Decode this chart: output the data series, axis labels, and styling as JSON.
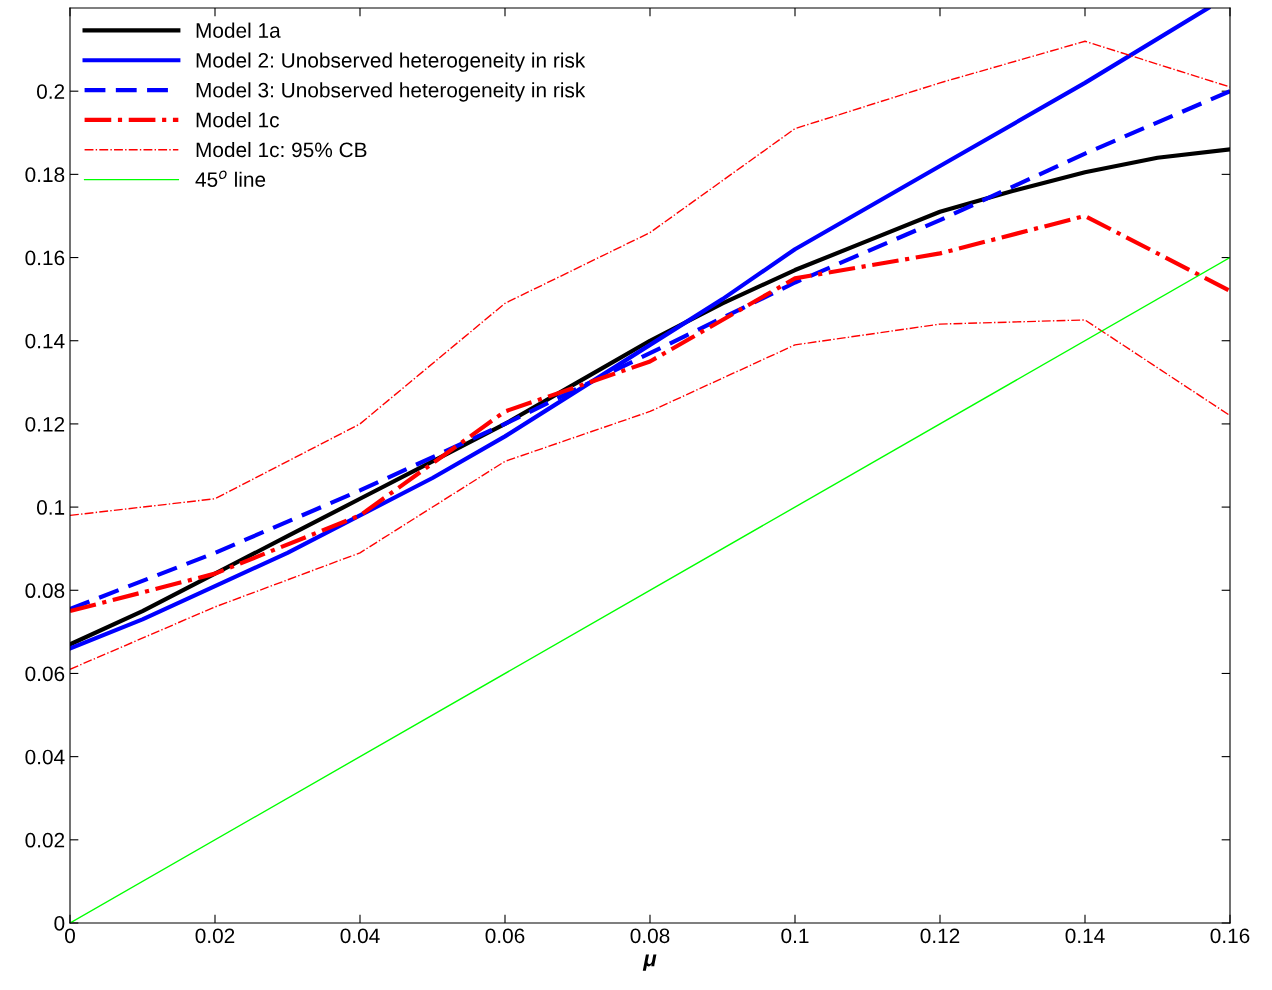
{
  "chart_data": {
    "type": "line",
    "xlabel": "μ",
    "xlim": [
      0,
      0.16
    ],
    "ylim": [
      0,
      0.22
    ],
    "xticks": [
      0,
      0.02,
      0.04,
      0.06,
      0.08,
      0.1,
      0.12,
      0.14,
      0.16
    ],
    "yticks": [
      0,
      0.02,
      0.04,
      0.06,
      0.08,
      0.1,
      0.12,
      0.14,
      0.16,
      0.18,
      0.2
    ],
    "grid": false,
    "legend": "top left",
    "series": [
      {
        "name": "Model 1a",
        "color": "#000000",
        "line_style": "solid",
        "x": [
          0,
          0.01,
          0.02,
          0.03,
          0.04,
          0.05,
          0.06,
          0.07,
          0.08,
          0.09,
          0.1,
          0.11,
          0.12,
          0.13,
          0.14,
          0.15,
          0.16
        ],
        "values": [
          0.067,
          0.075,
          0.084,
          0.093,
          0.102,
          0.111,
          0.12,
          0.13,
          0.14,
          0.149,
          0.157,
          0.164,
          0.171,
          0.176,
          0.1805,
          0.184,
          0.186
        ]
      },
      {
        "name": "Model 2: Unobserved heterogeneity in risk",
        "color": "#0000ff",
        "line_style": "solid",
        "x": [
          0,
          0.01,
          0.02,
          0.03,
          0.04,
          0.05,
          0.06,
          0.07,
          0.08,
          0.09,
          0.1,
          0.12,
          0.14,
          0.157
        ],
        "values": [
          0.066,
          0.073,
          0.081,
          0.089,
          0.098,
          0.107,
          0.117,
          0.128,
          0.139,
          0.15,
          0.162,
          0.182,
          0.202,
          0.22
        ]
      },
      {
        "name": "Model 3: Unobserved heterogeneity in risk",
        "color": "#0000ff",
        "line_style": "dashed",
        "x": [
          0,
          0.02,
          0.04,
          0.06,
          0.08,
          0.1,
          0.12,
          0.14,
          0.16
        ],
        "values": [
          0.0755,
          0.089,
          0.104,
          0.12,
          0.137,
          0.154,
          0.169,
          0.185,
          0.2
        ]
      },
      {
        "name": "Model 1c",
        "color": "#ff0000",
        "line_style": "dashdot",
        "x": [
          0,
          0.02,
          0.04,
          0.06,
          0.08,
          0.1,
          0.12,
          0.14,
          0.16
        ],
        "values": [
          0.075,
          0.084,
          0.098,
          0.123,
          0.135,
          0.155,
          0.161,
          0.17,
          0.152
        ]
      },
      {
        "name": "Model 1c: 95% CB",
        "color": "#ff0000",
        "line_style": "dashdot",
        "x": [
          0,
          0.02,
          0.04,
          0.06,
          0.08,
          0.1,
          0.12,
          0.14,
          0.16
        ],
        "values": [
          0.098,
          0.102,
          0.12,
          0.149,
          0.166,
          0.191,
          0.202,
          0.212,
          0.201
        ]
      },
      {
        "color": "#ff0000",
        "line_style": "dashdot",
        "x": [
          0,
          0.02,
          0.04,
          0.06,
          0.08,
          0.1,
          0.12,
          0.14,
          0.16
        ],
        "values": [
          0.061,
          0.076,
          0.089,
          0.111,
          0.123,
          0.139,
          0.144,
          0.145,
          0.122
        ]
      },
      {
        "name": "45$^{o}$ line",
        "color": "#00ff00",
        "line_style": "solid",
        "x": [
          0,
          0.16
        ],
        "values": [
          0,
          0.16
        ]
      }
    ]
  }
}
